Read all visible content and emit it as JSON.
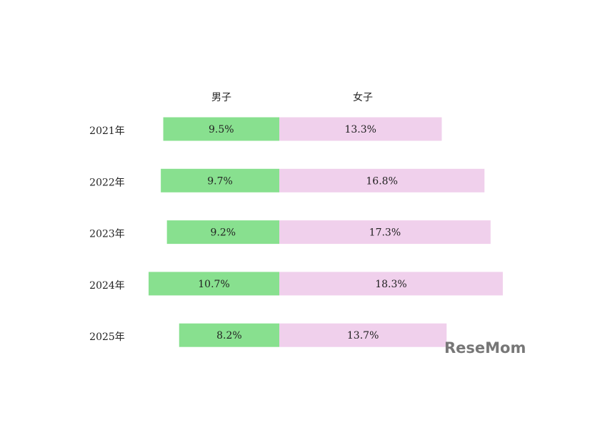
{
  "chart_data": {
    "type": "bar",
    "categories": [
      "2021年",
      "2022年",
      "2023年",
      "2024年",
      "2025年"
    ],
    "series": [
      {
        "name": "男子",
        "color": "#88e08f",
        "values": [
          9.5,
          9.7,
          9.2,
          10.7,
          8.2
        ],
        "value_labels": [
          "9.5%",
          "9.7%",
          "9.2%",
          "10.7%",
          "8.2%"
        ]
      },
      {
        "name": "女子",
        "color": "#f0d0ec",
        "values": [
          13.3,
          16.8,
          17.3,
          18.3,
          13.7
        ],
        "value_labels": [
          "13.3%",
          "16.8%",
          "17.3%",
          "18.3%",
          "13.7%"
        ]
      }
    ],
    "watermark": "ReseMom"
  }
}
